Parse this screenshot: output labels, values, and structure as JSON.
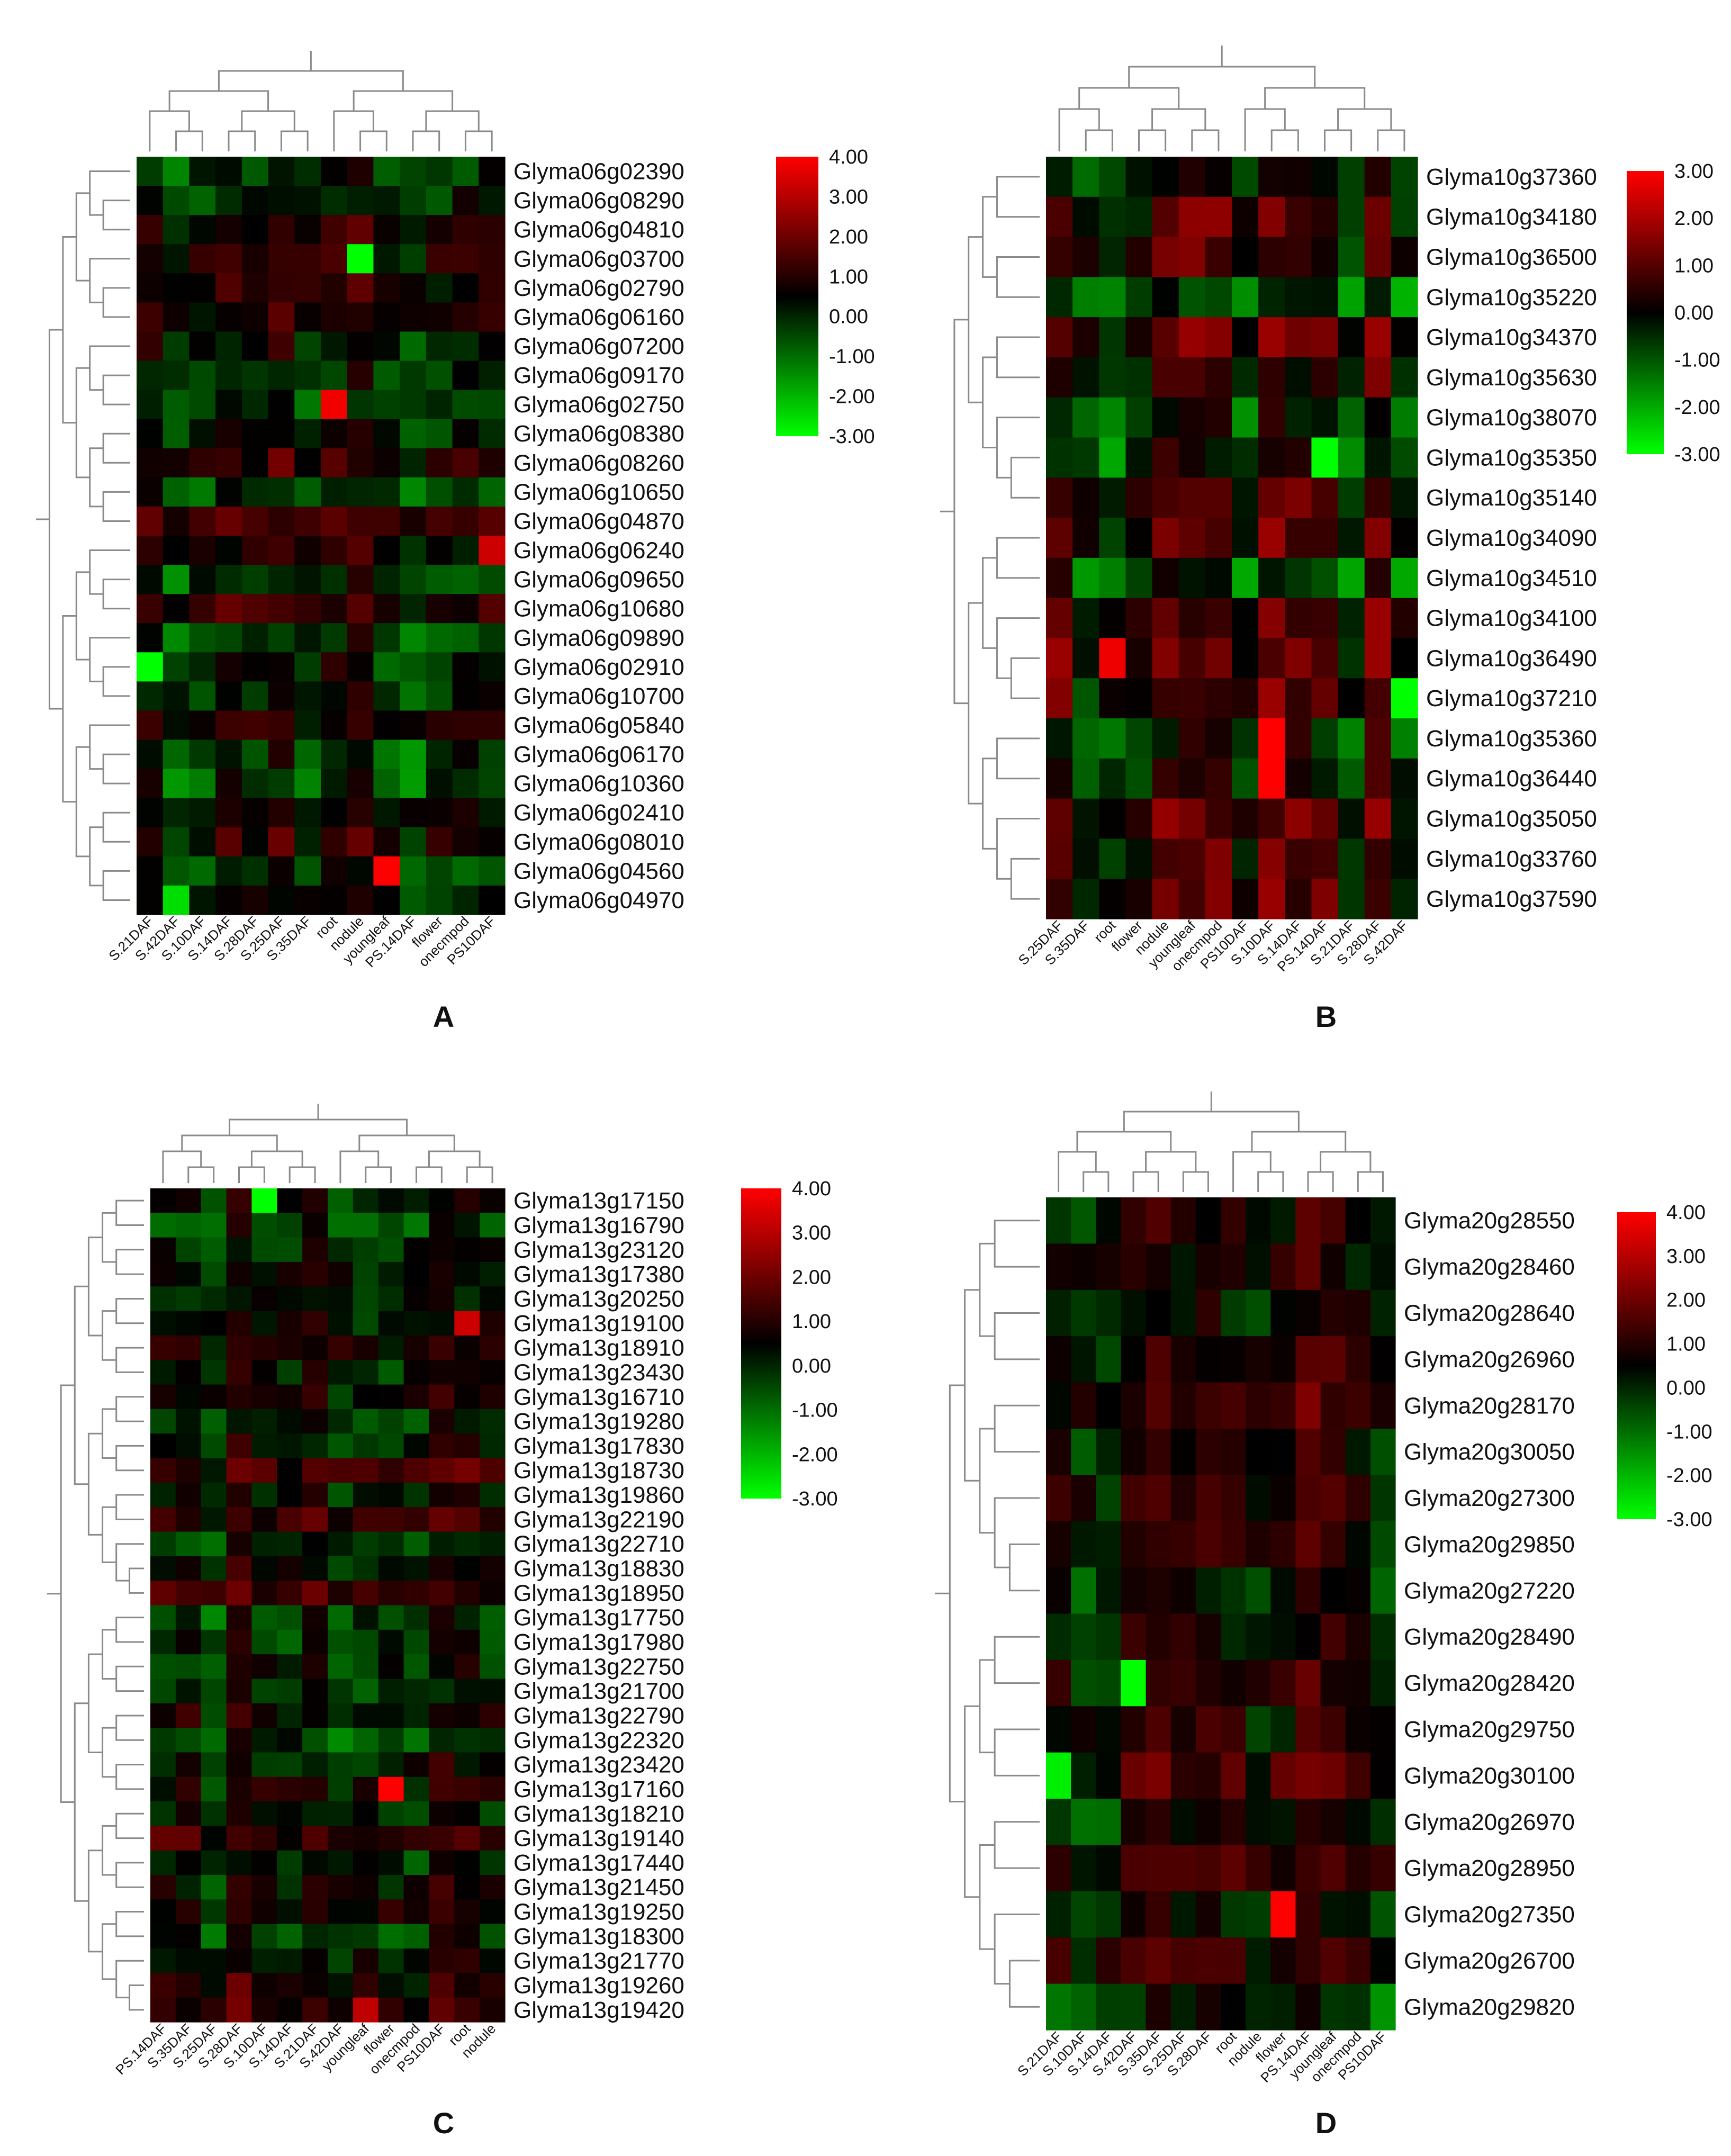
{
  "color_scale": {
    "low": "#00ff00",
    "mid": "#000000",
    "high": "#ff0000"
  },
  "chart_data": [
    {
      "panel": "A",
      "type": "heatmap",
      "legend": {
        "ticks": [
          "4.00",
          "3.00",
          "2.00",
          "1.00",
          "0.00",
          "-1.00",
          "-2.00",
          "-3.00"
        ],
        "min": -3,
        "max": 4
      },
      "columns": [
        "S.21DAF",
        "S.42DAF",
        "S.10DAF",
        "S.14DAF",
        "S.28DAF",
        "S.25DAF",
        "S.35DAF",
        "root",
        "nodule",
        "youngleaf",
        "PS.14DAF",
        "flower",
        "onecmpod",
        "PS10DAF"
      ],
      "rows": [
        "Glyma06g02390",
        "Glyma06g08290",
        "Glyma06g04810",
        "Glyma06g03700",
        "Glyma06g02790",
        "Glyma06g06160",
        "Glyma06g07200",
        "Glyma06g09170",
        "Glyma06g02750",
        "Glyma06g08380",
        "Glyma06g08260",
        "Glyma06g10650",
        "Glyma06g04870",
        "Glyma06g06240",
        "Glyma06g09650",
        "Glyma06g10680",
        "Glyma06g09890",
        "Glyma06g02910",
        "Glyma06g10700",
        "Glyma06g05840",
        "Glyma06g06170",
        "Glyma06g10360",
        "Glyma06g02410",
        "Glyma06g08010",
        "Glyma06g04560",
        "Glyma06g04970"
      ],
      "highlights": [
        {
          "row": "Glyma06g02750",
          "column": "root",
          "value": 3.8
        },
        {
          "row": "Glyma06g06240",
          "column": "PS10DAF",
          "value": 3.2
        },
        {
          "row": "Glyma06g04560",
          "column": "youngleaf",
          "value": 4.0
        },
        {
          "row": "Glyma06g03700",
          "column": "nodule",
          "value": -3.0
        },
        {
          "row": "Glyma06g02910",
          "column": "S.21DAF",
          "value": -3.0
        },
        {
          "row": "Glyma06g04970",
          "column": "S.42DAF",
          "value": -2.6
        }
      ]
    },
    {
      "panel": "B",
      "type": "heatmap",
      "legend": {
        "ticks": [
          "3.00",
          "2.00",
          "1.00",
          "0.00",
          "-1.00",
          "-2.00",
          "-3.00"
        ],
        "min": -3,
        "max": 3
      },
      "columns": [
        "S.25DAF",
        "S.35DAF",
        "root",
        "flower",
        "nodule",
        "youngleaf",
        "onecmpod",
        "PS10DAF",
        "S.10DAF",
        "S.14DAF",
        "PS.14DAF",
        "S.21DAF",
        "S.28DAF",
        "S.42DAF"
      ],
      "rows": [
        "Glyma10g37360",
        "Glyma10g34180",
        "Glyma10g36500",
        "Glyma10g35220",
        "Glyma10g34370",
        "Glyma10g35630",
        "Glyma10g38070",
        "Glyma10g35350",
        "Glyma10g35140",
        "Glyma10g34090",
        "Glyma10g34510",
        "Glyma10g34100",
        "Glyma10g36490",
        "Glyma10g37210",
        "Glyma10g35360",
        "Glyma10g36440",
        "Glyma10g35050",
        "Glyma10g33760",
        "Glyma10g37590"
      ],
      "highlights": [
        {
          "row": "Glyma10g35360",
          "column": "S.10DAF",
          "value": 3.0
        },
        {
          "row": "Glyma10g36440",
          "column": "S.10DAF",
          "value": 3.0
        },
        {
          "row": "Glyma10g36490",
          "column": "root",
          "value": 2.8
        },
        {
          "row": "Glyma10g37210",
          "column": "S.42DAF",
          "value": -3.0
        },
        {
          "row": "Glyma10g35350",
          "column": "PS.14DAF",
          "value": -3.0
        }
      ]
    },
    {
      "panel": "C",
      "type": "heatmap",
      "legend": {
        "ticks": [
          "4.00",
          "3.00",
          "2.00",
          "1.00",
          "0.00",
          "-1.00",
          "-2.00",
          "-3.00"
        ],
        "min": -3,
        "max": 4
      },
      "columns": [
        "PS.14DAF",
        "S.35DAF",
        "S.25DAF",
        "S.28DAF",
        "S.10DAF",
        "S.14DAF",
        "S.21DAF",
        "S.42DAF",
        "youngleaf",
        "flower",
        "onecmpod",
        "PS10DAF",
        "root",
        "nodule"
      ],
      "rows": [
        "Glyma13g17150",
        "Glyma13g16790",
        "Glyma13g23120",
        "Glyma13g17380",
        "Glyma13g20250",
        "Glyma13g19100",
        "Glyma13g18910",
        "Glyma13g23430",
        "Glyma13g16710",
        "Glyma13g19280",
        "Glyma13g17830",
        "Glyma13g18730",
        "Glyma13g19860",
        "Glyma13g22190",
        "Glyma13g22710",
        "Glyma13g18830",
        "Glyma13g18950",
        "Glyma13g17750",
        "Glyma13g17980",
        "Glyma13g22750",
        "Glyma13g21700",
        "Glyma13g22790",
        "Glyma13g22320",
        "Glyma13g23420",
        "Glyma13g17160",
        "Glyma13g18210",
        "Glyma13g19140",
        "Glyma13g17440",
        "Glyma13g21450",
        "Glyma13g19250",
        "Glyma13g18300",
        "Glyma13g21770",
        "Glyma13g19260",
        "Glyma13g19420"
      ],
      "highlights": [
        {
          "row": "Glyma13g17160",
          "column": "flower",
          "value": 4.0
        },
        {
          "row": "Glyma13g19100",
          "column": "root",
          "value": 3.2
        },
        {
          "row": "Glyma13g19420",
          "column": "youngleaf",
          "value": 3.0
        },
        {
          "row": "Glyma13g17150",
          "column": "S.10DAF",
          "value": -3.0
        }
      ]
    },
    {
      "panel": "D",
      "type": "heatmap",
      "legend": {
        "ticks": [
          "4.00",
          "3.00",
          "2.00",
          "1.00",
          "0.00",
          "-1.00",
          "-2.00",
          "-3.00"
        ],
        "min": -3,
        "max": 4
      },
      "columns": [
        "S.21DAF",
        "S.10DAF",
        "S.14DAF",
        "S.42DAF",
        "S.35DAF",
        "S.25DAF",
        "S.28DAF",
        "root",
        "nodule",
        "flower",
        "PS.14DAF",
        "youngleaf",
        "onecmpod",
        "PS10DAF"
      ],
      "rows": [
        "Glyma20g28550",
        "Glyma20g28460",
        "Glyma20g28640",
        "Glyma20g26960",
        "Glyma20g28170",
        "Glyma20g30050",
        "Glyma20g27300",
        "Glyma20g29850",
        "Glyma20g27220",
        "Glyma20g28490",
        "Glyma20g28420",
        "Glyma20g29750",
        "Glyma20g30100",
        "Glyma20g26970",
        "Glyma20g28950",
        "Glyma20g27350",
        "Glyma20g26700",
        "Glyma20g29820"
      ],
      "highlights": [
        {
          "row": "Glyma20g27350",
          "column": "flower",
          "value": 4.0
        },
        {
          "row": "Glyma20g28420",
          "column": "S.42DAF",
          "value": -3.0
        },
        {
          "row": "Glyma20g30100",
          "column": "S.21DAF",
          "value": -2.8
        }
      ]
    }
  ]
}
